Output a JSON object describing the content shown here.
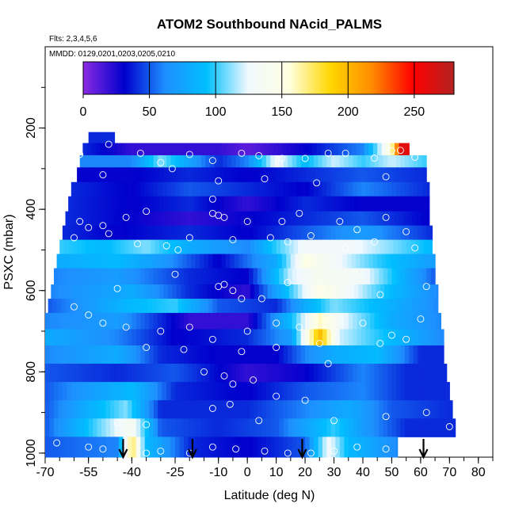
{
  "chart_data": {
    "type": "heatmap",
    "title": "ATOM2 Southbound NAcid_PALMS",
    "subtitle_flights": "Flts: 2,3,4,5,6",
    "subtitle_dates": "MMDD: 0129,0201,0203,0205,0210",
    "xlabel": "Latitude (deg N)",
    "ylabel": "PSXC (mbar)",
    "xlim": [
      -70,
      85
    ],
    "ylim": [
      1010,
      0
    ],
    "x_ticks": [
      -70,
      -55,
      -40,
      -25,
      -10,
      0,
      10,
      20,
      30,
      40,
      50,
      60,
      70,
      80
    ],
    "y_ticks": [
      200,
      400,
      600,
      800,
      1000
    ],
    "colorbar": {
      "range": [
        0,
        280
      ],
      "ticks": [
        0,
        50,
        100,
        150,
        200,
        250
      ],
      "colors": [
        "#8a2be2",
        "#0000cd",
        "#1e90ff",
        "#00bfff",
        "#f0f8ff",
        "#ffffe0",
        "#ffd700",
        "#ff8c00",
        "#ff0000",
        "#b22222"
      ]
    },
    "arrows_x": [
      -43,
      -19,
      19,
      61
    ],
    "bands": [
      {
        "p_top": 210,
        "p_bot": 237,
        "lat_min": -55,
        "lat_max": -46,
        "segments": [
          [
            -55,
            40
          ],
          [
            -46,
            40
          ]
        ]
      },
      {
        "p_top": 237,
        "p_bot": 267,
        "lat_min": -57,
        "lat_max": 56,
        "segments": [
          [
            -57,
            40
          ],
          [
            -40,
            20
          ],
          [
            -10,
            20
          ],
          [
            0,
            10
          ],
          [
            20,
            30
          ],
          [
            40,
            60
          ],
          [
            50,
            160
          ],
          [
            53,
            260
          ],
          [
            56,
            260
          ]
        ]
      },
      {
        "p_top": 267,
        "p_bot": 297,
        "lat_min": -58,
        "lat_max": 62,
        "segments": [
          [
            -58,
            60
          ],
          [
            -40,
            60
          ],
          [
            -30,
            110
          ],
          [
            -10,
            40
          ],
          [
            0,
            60
          ],
          [
            10,
            130
          ],
          [
            20,
            90
          ],
          [
            30,
            120
          ],
          [
            40,
            100
          ],
          [
            50,
            120
          ],
          [
            62,
            100
          ]
        ]
      },
      {
        "p_top": 297,
        "p_bot": 333,
        "lat_min": -59,
        "lat_max": 62,
        "segments": [
          [
            -59,
            30
          ],
          [
            -40,
            30
          ],
          [
            -20,
            40
          ],
          [
            0,
            30
          ],
          [
            20,
            40
          ],
          [
            40,
            50
          ],
          [
            62,
            40
          ]
        ]
      },
      {
        "p_top": 333,
        "p_bot": 368,
        "lat_min": -61,
        "lat_max": 63,
        "segments": [
          [
            -61,
            40
          ],
          [
            -40,
            30
          ],
          [
            -20,
            50
          ],
          [
            0,
            40
          ],
          [
            20,
            30
          ],
          [
            40,
            60
          ],
          [
            63,
            40
          ]
        ]
      },
      {
        "p_top": 368,
        "p_bot": 405,
        "lat_min": -62,
        "lat_max": 63,
        "segments": [
          [
            -62,
            40
          ],
          [
            -40,
            30
          ],
          [
            -20,
            40
          ],
          [
            0,
            20
          ],
          [
            20,
            40
          ],
          [
            40,
            30
          ],
          [
            63,
            30
          ]
        ]
      },
      {
        "p_top": 405,
        "p_bot": 440,
        "lat_min": -63,
        "lat_max": 63,
        "segments": [
          [
            -63,
            40
          ],
          [
            -40,
            30
          ],
          [
            -20,
            20
          ],
          [
            0,
            30
          ],
          [
            20,
            40
          ],
          [
            40,
            50
          ],
          [
            63,
            30
          ]
        ]
      },
      {
        "p_top": 440,
        "p_bot": 475,
        "lat_min": -64,
        "lat_max": 64,
        "segments": [
          [
            -64,
            40
          ],
          [
            -45,
            30
          ],
          [
            -20,
            40
          ],
          [
            0,
            30
          ],
          [
            20,
            50
          ],
          [
            40,
            70
          ],
          [
            64,
            40
          ]
        ]
      },
      {
        "p_top": 475,
        "p_bot": 510,
        "lat_min": -65,
        "lat_max": 64,
        "segments": [
          [
            -65,
            100
          ],
          [
            -50,
            90
          ],
          [
            -35,
            110
          ],
          [
            -20,
            80
          ],
          [
            0,
            60
          ],
          [
            10,
            100
          ],
          [
            20,
            130
          ],
          [
            35,
            130
          ],
          [
            50,
            110
          ],
          [
            64,
            90
          ]
        ]
      },
      {
        "p_top": 510,
        "p_bot": 545,
        "lat_min": -66,
        "lat_max": 65,
        "segments": [
          [
            -66,
            80
          ],
          [
            -45,
            90
          ],
          [
            -30,
            70
          ],
          [
            -10,
            30
          ],
          [
            10,
            80
          ],
          [
            20,
            150
          ],
          [
            30,
            130
          ],
          [
            45,
            100
          ],
          [
            65,
            70
          ]
        ]
      },
      {
        "p_top": 545,
        "p_bot": 585,
        "lat_min": -67,
        "lat_max": 65,
        "segments": [
          [
            -67,
            60
          ],
          [
            -45,
            70
          ],
          [
            -20,
            40
          ],
          [
            0,
            30
          ],
          [
            15,
            120
          ],
          [
            25,
            140
          ],
          [
            40,
            130
          ],
          [
            55,
            80
          ],
          [
            65,
            50
          ]
        ]
      },
      {
        "p_top": 585,
        "p_bot": 620,
        "lat_min": -68,
        "lat_max": 66,
        "segments": [
          [
            -68,
            60
          ],
          [
            -40,
            80
          ],
          [
            -20,
            40
          ],
          [
            0,
            20
          ],
          [
            15,
            100
          ],
          [
            25,
            150
          ],
          [
            35,
            130
          ],
          [
            50,
            90
          ],
          [
            66,
            60
          ]
        ]
      },
      {
        "p_top": 620,
        "p_bot": 655,
        "lat_min": -69,
        "lat_max": 66,
        "segments": [
          [
            -69,
            50
          ],
          [
            -40,
            90
          ],
          [
            -25,
            100
          ],
          [
            -10,
            50
          ],
          [
            10,
            40
          ],
          [
            20,
            80
          ],
          [
            30,
            110
          ],
          [
            45,
            90
          ],
          [
            66,
            60
          ]
        ]
      },
      {
        "p_top": 655,
        "p_bot": 695,
        "lat_min": -70,
        "lat_max": 67,
        "segments": [
          [
            -70,
            60
          ],
          [
            -45,
            70
          ],
          [
            -20,
            20
          ],
          [
            0,
            20
          ],
          [
            15,
            90
          ],
          [
            25,
            160
          ],
          [
            35,
            120
          ],
          [
            50,
            80
          ],
          [
            67,
            60
          ]
        ]
      },
      {
        "p_top": 695,
        "p_bot": 735,
        "lat_min": -70,
        "lat_max": 68,
        "segments": [
          [
            -70,
            80
          ],
          [
            -45,
            60
          ],
          [
            -25,
            30
          ],
          [
            0,
            40
          ],
          [
            15,
            70
          ],
          [
            25,
            200
          ],
          [
            32,
            120
          ],
          [
            50,
            90
          ],
          [
            68,
            60
          ]
        ]
      },
      {
        "p_top": 735,
        "p_bot": 780,
        "lat_min": -70,
        "lat_max": 68,
        "segments": [
          [
            -70,
            60
          ],
          [
            -45,
            80
          ],
          [
            -30,
            40
          ],
          [
            -10,
            30
          ],
          [
            10,
            30
          ],
          [
            20,
            60
          ],
          [
            30,
            80
          ],
          [
            45,
            90
          ],
          [
            60,
            40
          ],
          [
            68,
            40
          ]
        ]
      },
      {
        "p_top": 780,
        "p_bot": 825,
        "lat_min": -70,
        "lat_max": 69,
        "segments": [
          [
            -70,
            50
          ],
          [
            -45,
            40
          ],
          [
            -25,
            50
          ],
          [
            0,
            20
          ],
          [
            20,
            30
          ],
          [
            40,
            60
          ],
          [
            55,
            40
          ],
          [
            69,
            40
          ]
        ]
      },
      {
        "p_top": 825,
        "p_bot": 870,
        "lat_min": -70,
        "lat_max": 70,
        "segments": [
          [
            -70,
            50
          ],
          [
            -40,
            90
          ],
          [
            -25,
            40
          ],
          [
            0,
            30
          ],
          [
            20,
            50
          ],
          [
            40,
            60
          ],
          [
            55,
            40
          ],
          [
            70,
            40
          ]
        ]
      },
      {
        "p_top": 870,
        "p_bot": 915,
        "lat_min": -70,
        "lat_max": 71,
        "segments": [
          [
            -70,
            50
          ],
          [
            -42,
            110
          ],
          [
            -30,
            40
          ],
          [
            0,
            40
          ],
          [
            20,
            60
          ],
          [
            35,
            80
          ],
          [
            50,
            50
          ],
          [
            71,
            40
          ]
        ]
      },
      {
        "p_top": 915,
        "p_bot": 960,
        "lat_min": -70,
        "lat_max": 72,
        "segments": [
          [
            -70,
            50
          ],
          [
            -40,
            140
          ],
          [
            -30,
            50
          ],
          [
            -10,
            40
          ],
          [
            10,
            50
          ],
          [
            30,
            100
          ],
          [
            40,
            70
          ],
          [
            55,
            40
          ],
          [
            72,
            40
          ]
        ]
      },
      {
        "p_top": 960,
        "p_bot": 1010,
        "lat_min": -70,
        "lat_max": 52,
        "segments": [
          [
            -70,
            50
          ],
          [
            -45,
            60
          ],
          [
            -40,
            180
          ],
          [
            -35,
            90
          ],
          [
            -20,
            40
          ],
          [
            0,
            30
          ],
          [
            20,
            50
          ],
          [
            28,
            130
          ],
          [
            35,
            90
          ],
          [
            52,
            60
          ]
        ]
      }
    ],
    "points": [
      [
        -45,
        200
      ],
      [
        -52,
        200
      ],
      [
        -40,
        200
      ],
      [
        -48,
        240
      ],
      [
        -37,
        262
      ],
      [
        -30,
        285
      ],
      [
        -20,
        265
      ],
      [
        -12,
        280
      ],
      [
        -2,
        262
      ],
      [
        4,
        268
      ],
      [
        12,
        275
      ],
      [
        20,
        275
      ],
      [
        28,
        262
      ],
      [
        34,
        262
      ],
      [
        44,
        274
      ],
      [
        50,
        256
      ],
      [
        53,
        255
      ],
      [
        58,
        272
      ],
      [
        -58,
        265
      ],
      [
        -50,
        315
      ],
      [
        -26,
        300
      ],
      [
        -10,
        330
      ],
      [
        6,
        325
      ],
      [
        24,
        335
      ],
      [
        48,
        320
      ],
      [
        -58,
        430
      ],
      [
        -50,
        440
      ],
      [
        -55,
        445
      ],
      [
        -48,
        460
      ],
      [
        -42,
        420
      ],
      [
        -35,
        405
      ],
      [
        -12,
        375
      ],
      [
        -12,
        410
      ],
      [
        -10,
        415
      ],
      [
        -8,
        420
      ],
      [
        0,
        430
      ],
      [
        12,
        430
      ],
      [
        18,
        410
      ],
      [
        32,
        430
      ],
      [
        38,
        450
      ],
      [
        48,
        420
      ],
      [
        55,
        455
      ],
      [
        -60,
        470
      ],
      [
        -38,
        485
      ],
      [
        -28,
        490
      ],
      [
        -24,
        500
      ],
      [
        -20,
        470
      ],
      [
        -5,
        475
      ],
      [
        8,
        470
      ],
      [
        14,
        480
      ],
      [
        22,
        465
      ],
      [
        34,
        495
      ],
      [
        44,
        480
      ],
      [
        58,
        495
      ],
      [
        -45,
        595
      ],
      [
        -25,
        560
      ],
      [
        -10,
        590
      ],
      [
        -8,
        585
      ],
      [
        -5,
        600
      ],
      [
        -2,
        620
      ],
      [
        5,
        620
      ],
      [
        14,
        580
      ],
      [
        26,
        600
      ],
      [
        46,
        610
      ],
      [
        62,
        590
      ],
      [
        -60,
        640
      ],
      [
        -55,
        660
      ],
      [
        -50,
        680
      ],
      [
        -42,
        690
      ],
      [
        -30,
        700
      ],
      [
        -20,
        690
      ],
      [
        -12,
        720
      ],
      [
        0,
        700
      ],
      [
        10,
        680
      ],
      [
        18,
        690
      ],
      [
        30,
        700
      ],
      [
        40,
        680
      ],
      [
        55,
        720
      ],
      [
        60,
        670
      ],
      [
        -35,
        740
      ],
      [
        -22,
        745
      ],
      [
        -2,
        750
      ],
      [
        10,
        740
      ],
      [
        25,
        730
      ],
      [
        46,
        730
      ],
      [
        50,
        710
      ],
      [
        -15,
        800
      ],
      [
        -8,
        810
      ],
      [
        -5,
        830
      ],
      [
        2,
        820
      ],
      [
        10,
        860
      ],
      [
        20,
        870
      ],
      [
        28,
        780
      ],
      [
        -45,
        925
      ],
      [
        -35,
        930
      ],
      [
        -12,
        890
      ],
      [
        -6,
        880
      ],
      [
        4,
        920
      ],
      [
        30,
        920
      ],
      [
        48,
        910
      ],
      [
        62,
        900
      ],
      [
        70,
        935
      ],
      [
        -66,
        975
      ],
      [
        -55,
        985
      ],
      [
        -50,
        990
      ],
      [
        -42,
        1000
      ],
      [
        -35,
        1000
      ],
      [
        -30,
        995
      ],
      [
        -20,
        1000
      ],
      [
        -12,
        985
      ],
      [
        -4,
        990
      ],
      [
        6,
        995
      ],
      [
        14,
        1000
      ],
      [
        22,
        1000
      ],
      [
        30,
        995
      ],
      [
        38,
        985
      ],
      [
        48,
        990
      ],
      [
        56,
        1000
      ]
    ]
  }
}
